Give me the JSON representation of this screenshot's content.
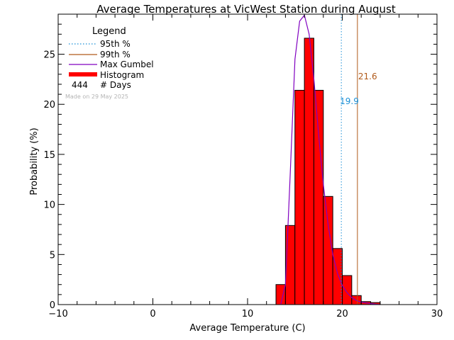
{
  "chart_data": {
    "type": "bar",
    "title": "Average Temperatures at VicWest Station during August",
    "xlabel": "Average Temperature (C)",
    "ylabel": "Probability (%)",
    "xlim": [
      -10,
      30
    ],
    "ylim": [
      0,
      29
    ],
    "xticks": [
      -10,
      0,
      10,
      20,
      30
    ],
    "yticks": [
      0,
      5,
      10,
      15,
      20,
      25
    ],
    "bin_width": 1,
    "histogram": {
      "name": "Histogram",
      "color": "#ff0000",
      "bins": [
        {
          "x0": 13,
          "value": 2.0
        },
        {
          "x0": 14,
          "value": 7.9
        },
        {
          "x0": 15,
          "value": 21.4
        },
        {
          "x0": 16,
          "value": 26.6
        },
        {
          "x0": 17,
          "value": 21.4
        },
        {
          "x0": 18,
          "value": 10.8
        },
        {
          "x0": 19,
          "value": 5.6
        },
        {
          "x0": 20,
          "value": 2.9
        },
        {
          "x0": 21,
          "value": 0.9
        },
        {
          "x0": 22,
          "value": 0.3
        },
        {
          "x0": 23,
          "value": 0.2
        }
      ]
    },
    "gumbel": {
      "name": "Max Gumbel",
      "color": "#8000c0",
      "x": [
        13.5,
        14.0,
        14.5,
        15.0,
        15.5,
        16.0,
        16.5,
        17.0,
        17.5,
        18.0,
        18.5,
        19.0,
        19.5,
        20.0,
        20.5,
        21.0,
        21.5,
        22.0,
        23.0,
        24.0
      ],
      "y": [
        0.0,
        2.0,
        13.0,
        24.5,
        28.3,
        28.9,
        27.0,
        22.5,
        17.0,
        12.0,
        8.0,
        5.0,
        3.1,
        1.9,
        1.2,
        0.7,
        0.4,
        0.25,
        0.1,
        0.0
      ]
    },
    "p95": {
      "name": "95th %",
      "value": 19.9,
      "label": "19.9",
      "color": "#1a8fd6"
    },
    "p99": {
      "name": "99th %",
      "value": 21.6,
      "label": "21.6",
      "color": "#b05a1a"
    },
    "legend": {
      "title": "Legend",
      "position": "top-left",
      "days_count": "444",
      "days_label": "# Days"
    },
    "footnote": "Made on 29 May 2025"
  }
}
